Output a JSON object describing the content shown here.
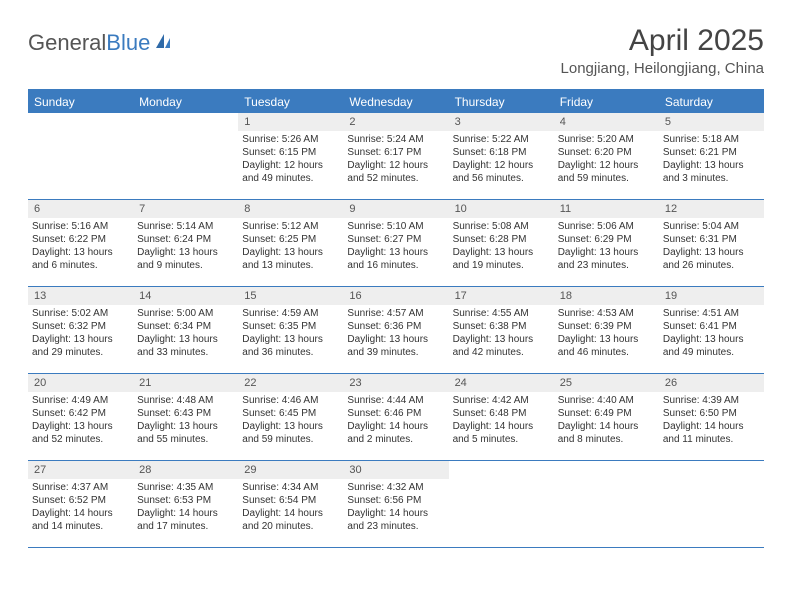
{
  "logo": {
    "text1": "General",
    "text2": "Blue"
  },
  "title": "April 2025",
  "location": "Longjiang, Heilongjiang, China",
  "weekdays": [
    "Sunday",
    "Monday",
    "Tuesday",
    "Wednesday",
    "Thursday",
    "Friday",
    "Saturday"
  ],
  "colors": {
    "header_bg": "#3b7bbf",
    "daynum_bg": "#eeeeee",
    "text": "#333333"
  },
  "weeks": [
    [
      {
        "num": "",
        "lines": []
      },
      {
        "num": "",
        "lines": []
      },
      {
        "num": "1",
        "lines": [
          "Sunrise: 5:26 AM",
          "Sunset: 6:15 PM",
          "Daylight: 12 hours",
          "and 49 minutes."
        ]
      },
      {
        "num": "2",
        "lines": [
          "Sunrise: 5:24 AM",
          "Sunset: 6:17 PM",
          "Daylight: 12 hours",
          "and 52 minutes."
        ]
      },
      {
        "num": "3",
        "lines": [
          "Sunrise: 5:22 AM",
          "Sunset: 6:18 PM",
          "Daylight: 12 hours",
          "and 56 minutes."
        ]
      },
      {
        "num": "4",
        "lines": [
          "Sunrise: 5:20 AM",
          "Sunset: 6:20 PM",
          "Daylight: 12 hours",
          "and 59 minutes."
        ]
      },
      {
        "num": "5",
        "lines": [
          "Sunrise: 5:18 AM",
          "Sunset: 6:21 PM",
          "Daylight: 13 hours",
          "and 3 minutes."
        ]
      }
    ],
    [
      {
        "num": "6",
        "lines": [
          "Sunrise: 5:16 AM",
          "Sunset: 6:22 PM",
          "Daylight: 13 hours",
          "and 6 minutes."
        ]
      },
      {
        "num": "7",
        "lines": [
          "Sunrise: 5:14 AM",
          "Sunset: 6:24 PM",
          "Daylight: 13 hours",
          "and 9 minutes."
        ]
      },
      {
        "num": "8",
        "lines": [
          "Sunrise: 5:12 AM",
          "Sunset: 6:25 PM",
          "Daylight: 13 hours",
          "and 13 minutes."
        ]
      },
      {
        "num": "9",
        "lines": [
          "Sunrise: 5:10 AM",
          "Sunset: 6:27 PM",
          "Daylight: 13 hours",
          "and 16 minutes."
        ]
      },
      {
        "num": "10",
        "lines": [
          "Sunrise: 5:08 AM",
          "Sunset: 6:28 PM",
          "Daylight: 13 hours",
          "and 19 minutes."
        ]
      },
      {
        "num": "11",
        "lines": [
          "Sunrise: 5:06 AM",
          "Sunset: 6:29 PM",
          "Daylight: 13 hours",
          "and 23 minutes."
        ]
      },
      {
        "num": "12",
        "lines": [
          "Sunrise: 5:04 AM",
          "Sunset: 6:31 PM",
          "Daylight: 13 hours",
          "and 26 minutes."
        ]
      }
    ],
    [
      {
        "num": "13",
        "lines": [
          "Sunrise: 5:02 AM",
          "Sunset: 6:32 PM",
          "Daylight: 13 hours",
          "and 29 minutes."
        ]
      },
      {
        "num": "14",
        "lines": [
          "Sunrise: 5:00 AM",
          "Sunset: 6:34 PM",
          "Daylight: 13 hours",
          "and 33 minutes."
        ]
      },
      {
        "num": "15",
        "lines": [
          "Sunrise: 4:59 AM",
          "Sunset: 6:35 PM",
          "Daylight: 13 hours",
          "and 36 minutes."
        ]
      },
      {
        "num": "16",
        "lines": [
          "Sunrise: 4:57 AM",
          "Sunset: 6:36 PM",
          "Daylight: 13 hours",
          "and 39 minutes."
        ]
      },
      {
        "num": "17",
        "lines": [
          "Sunrise: 4:55 AM",
          "Sunset: 6:38 PM",
          "Daylight: 13 hours",
          "and 42 minutes."
        ]
      },
      {
        "num": "18",
        "lines": [
          "Sunrise: 4:53 AM",
          "Sunset: 6:39 PM",
          "Daylight: 13 hours",
          "and 46 minutes."
        ]
      },
      {
        "num": "19",
        "lines": [
          "Sunrise: 4:51 AM",
          "Sunset: 6:41 PM",
          "Daylight: 13 hours",
          "and 49 minutes."
        ]
      }
    ],
    [
      {
        "num": "20",
        "lines": [
          "Sunrise: 4:49 AM",
          "Sunset: 6:42 PM",
          "Daylight: 13 hours",
          "and 52 minutes."
        ]
      },
      {
        "num": "21",
        "lines": [
          "Sunrise: 4:48 AM",
          "Sunset: 6:43 PM",
          "Daylight: 13 hours",
          "and 55 minutes."
        ]
      },
      {
        "num": "22",
        "lines": [
          "Sunrise: 4:46 AM",
          "Sunset: 6:45 PM",
          "Daylight: 13 hours",
          "and 59 minutes."
        ]
      },
      {
        "num": "23",
        "lines": [
          "Sunrise: 4:44 AM",
          "Sunset: 6:46 PM",
          "Daylight: 14 hours",
          "and 2 minutes."
        ]
      },
      {
        "num": "24",
        "lines": [
          "Sunrise: 4:42 AM",
          "Sunset: 6:48 PM",
          "Daylight: 14 hours",
          "and 5 minutes."
        ]
      },
      {
        "num": "25",
        "lines": [
          "Sunrise: 4:40 AM",
          "Sunset: 6:49 PM",
          "Daylight: 14 hours",
          "and 8 minutes."
        ]
      },
      {
        "num": "26",
        "lines": [
          "Sunrise: 4:39 AM",
          "Sunset: 6:50 PM",
          "Daylight: 14 hours",
          "and 11 minutes."
        ]
      }
    ],
    [
      {
        "num": "27",
        "lines": [
          "Sunrise: 4:37 AM",
          "Sunset: 6:52 PM",
          "Daylight: 14 hours",
          "and 14 minutes."
        ]
      },
      {
        "num": "28",
        "lines": [
          "Sunrise: 4:35 AM",
          "Sunset: 6:53 PM",
          "Daylight: 14 hours",
          "and 17 minutes."
        ]
      },
      {
        "num": "29",
        "lines": [
          "Sunrise: 4:34 AM",
          "Sunset: 6:54 PM",
          "Daylight: 14 hours",
          "and 20 minutes."
        ]
      },
      {
        "num": "30",
        "lines": [
          "Sunrise: 4:32 AM",
          "Sunset: 6:56 PM",
          "Daylight: 14 hours",
          "and 23 minutes."
        ]
      },
      {
        "num": "",
        "lines": []
      },
      {
        "num": "",
        "lines": []
      },
      {
        "num": "",
        "lines": []
      }
    ]
  ]
}
